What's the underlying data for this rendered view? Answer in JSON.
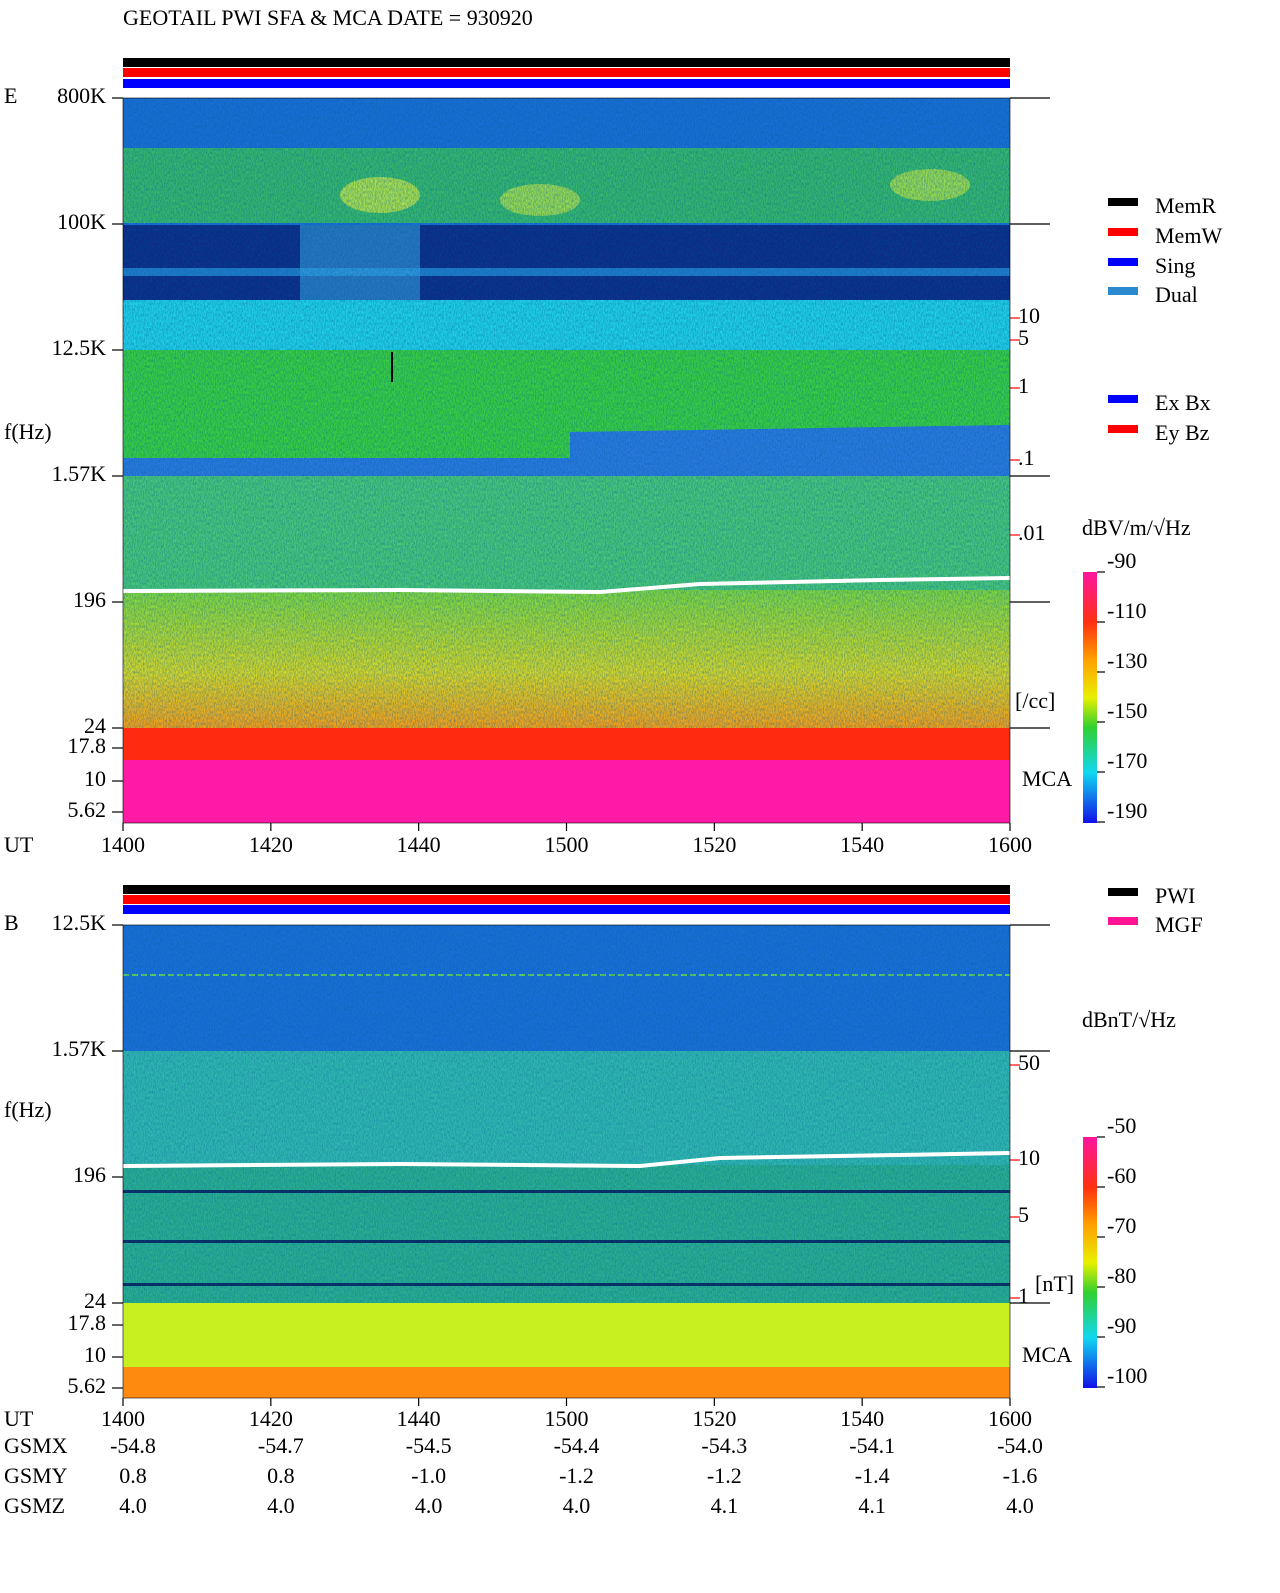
{
  "header": {
    "title": "GEOTAIL  PWI SFA & MCA   DATE = 930920"
  },
  "panels": [
    {
      "label": "E",
      "freq_ticks": [
        "800K",
        "100K",
        "12.5K",
        "1.57K",
        "196",
        "24",
        "17.8",
        "10",
        "5.62"
      ],
      "y_label": "f(Hz)",
      "time_label": "UT",
      "time_ticks": [
        "1400",
        "1420",
        "1440",
        "1500",
        "1520",
        "1540",
        "1600"
      ],
      "mca_label": "MCA",
      "right_ticks": [
        "10",
        "5",
        "1",
        ".1",
        ".01"
      ],
      "right_unit": "[/cc]",
      "legend": [
        {
          "name": "MemR",
          "color": "#000000"
        },
        {
          "name": "MemW",
          "color": "#ff0000"
        },
        {
          "name": "Sing",
          "color": "#0000ff"
        },
        {
          "name": "Dual",
          "color": "#2a8ad0"
        }
      ],
      "legend2": [
        {
          "name": "Ex Bx",
          "color": "#0000ff"
        },
        {
          "name": "Ey Bz",
          "color": "#ff0000"
        }
      ],
      "colorbar_unit": "dBV/m/√Hz",
      "colorbar_ticks": [
        "-90",
        "-110",
        "-130",
        "-150",
        "-170",
        "-190"
      ]
    },
    {
      "label": "B",
      "freq_ticks": [
        "12.5K",
        "1.57K",
        "196",
        "24",
        "17.8",
        "10",
        "5.62"
      ],
      "y_label": "f(Hz)",
      "time_label": "UT",
      "time_ticks": [
        "1400",
        "1420",
        "1440",
        "1500",
        "1520",
        "1540",
        "1600"
      ],
      "mca_label": "MCA",
      "right_ticks": [
        "50",
        "10",
        "5",
        "1"
      ],
      "right_unit": "[nT]",
      "legend": [
        {
          "name": "PWI",
          "color": "#000000"
        },
        {
          "name": "MGF",
          "color": "#ff1493"
        }
      ],
      "legend2": [],
      "colorbar_unit": "dBnT/√Hz",
      "colorbar_ticks": [
        "-50",
        "-60",
        "-70",
        "-80",
        "-90",
        "-100"
      ]
    }
  ],
  "orbit": {
    "rows": [
      {
        "label": "GSMX",
        "values": [
          "-54.8",
          "-54.7",
          "-54.5",
          "-54.4",
          "-54.3",
          "-54.1",
          "-54.0"
        ]
      },
      {
        "label": "GSMY",
        "values": [
          "0.8",
          "0.8",
          "-1.0",
          "-1.2",
          "-1.2",
          "-1.4",
          "-1.6"
        ]
      },
      {
        "label": "GSMZ",
        "values": [
          "4.0",
          "4.0",
          "4.0",
          "4.0",
          "4.1",
          "4.1",
          "4.0"
        ]
      }
    ]
  }
}
